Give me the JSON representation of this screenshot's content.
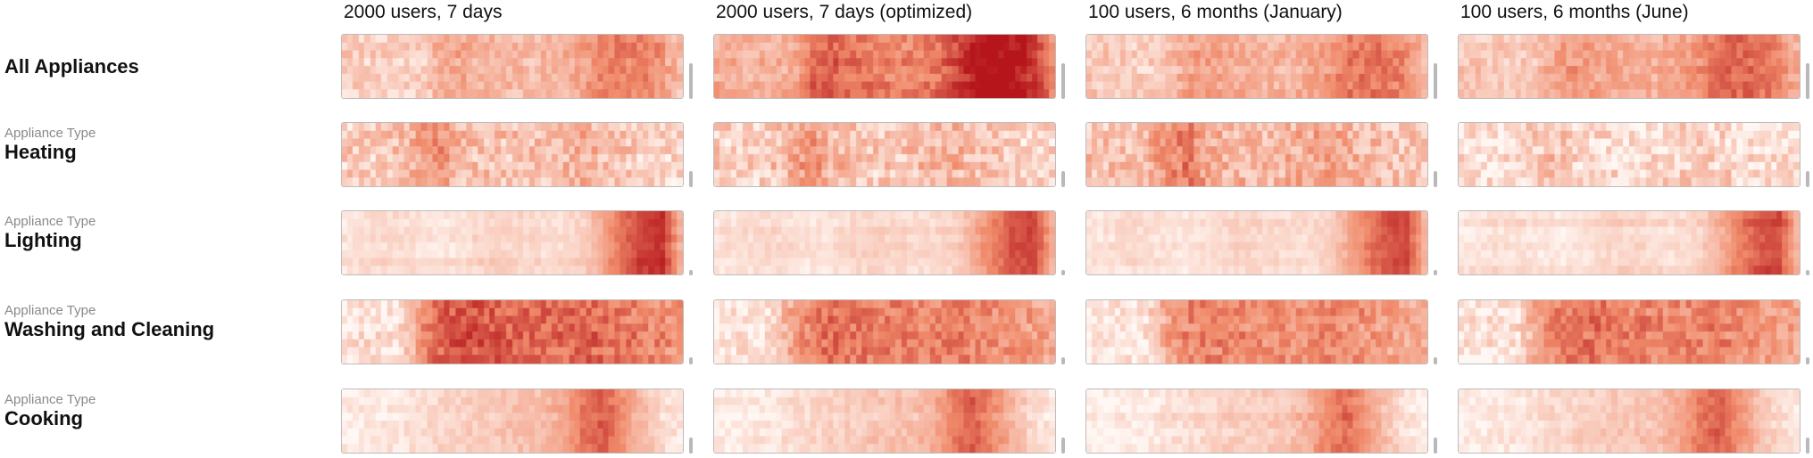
{
  "chart_data": {
    "type": "heatmap",
    "columns": [
      "2000 users, 7 days",
      "2000 users, 7 days (optimized)",
      "100 users, 6 months (January)",
      "100 users, 6 months (June)"
    ],
    "rows": [
      {
        "sublabel": "",
        "label": "All Appliances",
        "profile": [
          0.3,
          0.3,
          0.28,
          0.27,
          0.3,
          0.55,
          0.58,
          0.5,
          0.48,
          0.45,
          0.45,
          0.5,
          0.62,
          0.8,
          0.85,
          0.82,
          0.68,
          0.4
        ],
        "noise": 0.12,
        "intensity": [
          0.7,
          1.25,
          0.75,
          0.8
        ]
      },
      {
        "sublabel": "Appliance Type",
        "label": "Heating",
        "profile": [
          0.3,
          0.3,
          0.3,
          0.35,
          0.6,
          0.7,
          0.45,
          0.38,
          0.35,
          0.35,
          0.38,
          0.45,
          0.5,
          0.42,
          0.35,
          0.3,
          0.28,
          0.25
        ],
        "noise": 0.18,
        "intensity": [
          0.7,
          0.7,
          0.85,
          0.4
        ]
      },
      {
        "sublabel": "Appliance Type",
        "label": "Lighting",
        "profile": [
          0.1,
          0.12,
          0.15,
          0.15,
          0.12,
          0.1,
          0.12,
          0.18,
          0.2,
          0.18,
          0.15,
          0.15,
          0.2,
          0.4,
          0.65,
          0.85,
          0.9,
          0.3
        ],
        "noise": 0.06,
        "intensity": [
          1.0,
          0.9,
          0.9,
          0.9
        ]
      },
      {
        "sublabel": "Appliance Type",
        "label": "Washing and Cleaning",
        "profile": [
          0.08,
          0.1,
          0.12,
          0.15,
          0.55,
          0.75,
          0.8,
          0.78,
          0.75,
          0.72,
          0.72,
          0.7,
          0.72,
          0.7,
          0.65,
          0.6,
          0.55,
          0.5
        ],
        "noise": 0.15,
        "intensity": [
          0.95,
          0.8,
          0.75,
          0.8
        ]
      },
      {
        "sublabel": "Appliance Type",
        "label": "Cooking",
        "profile": [
          0.05,
          0.06,
          0.08,
          0.1,
          0.15,
          0.18,
          0.22,
          0.25,
          0.28,
          0.3,
          0.32,
          0.45,
          0.7,
          0.85,
          0.6,
          0.35,
          0.15,
          0.08
        ],
        "noise": 0.08,
        "intensity": [
          0.85,
          0.85,
          0.8,
          0.85
        ]
      }
    ],
    "colormap": {
      "low": "#fff7f3",
      "mid": "#f08a6a",
      "high": "#b5151b"
    }
  }
}
